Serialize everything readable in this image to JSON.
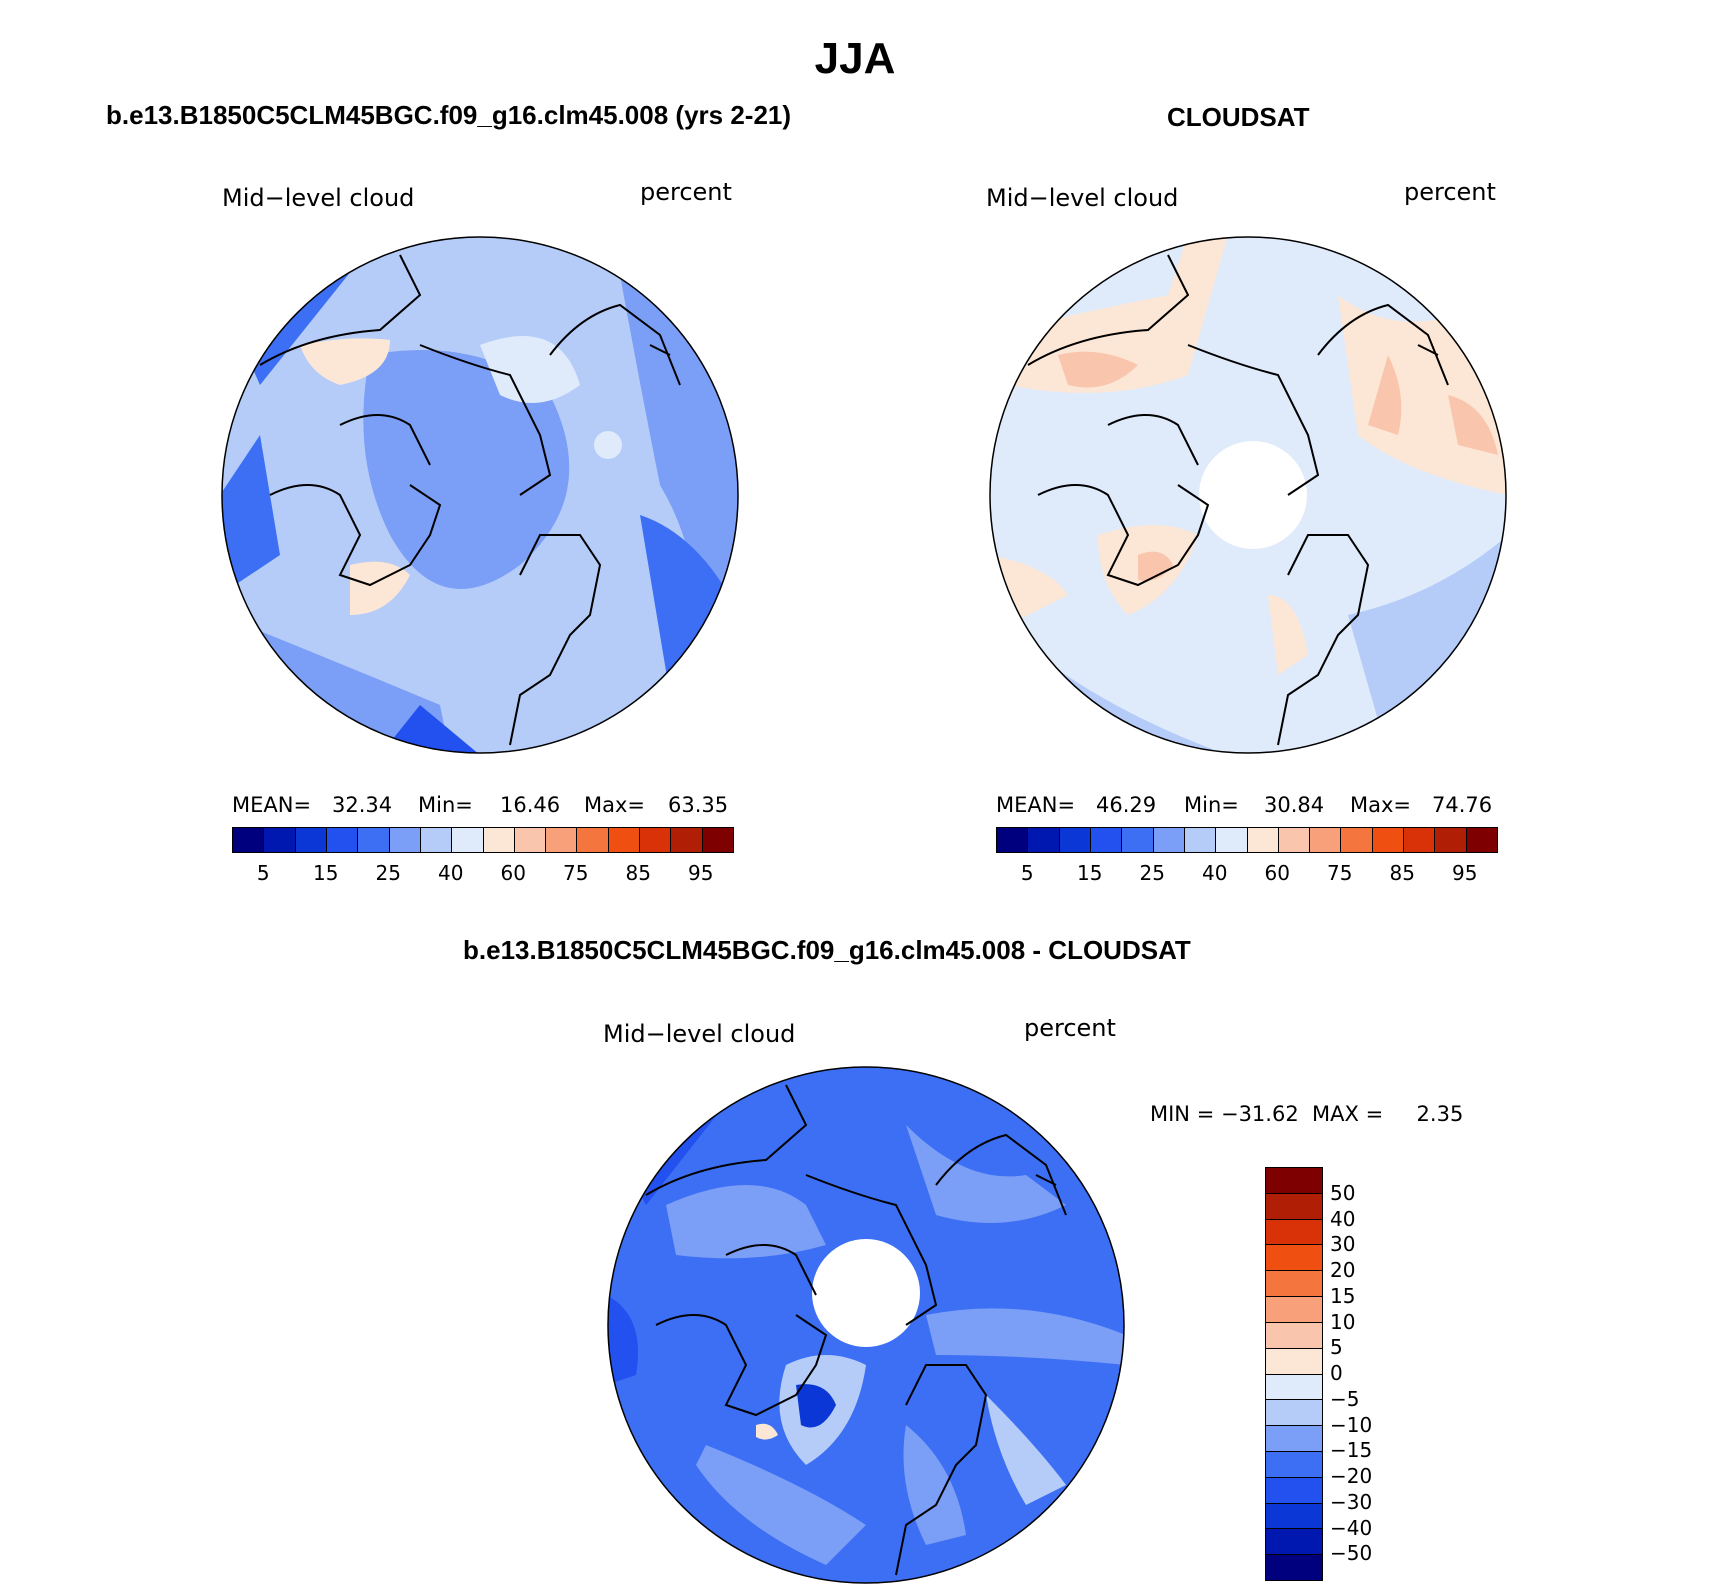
{
  "figure": {
    "title": "JJA"
  },
  "panels": [
    {
      "title": "b.e13.B1850C5CLM45BGC.f09_g16.clm45.008 (yrs 2-21)",
      "left_label": "Mid−level cloud",
      "right_label": "percent",
      "stats": {
        "mean_label": "MEAN=",
        "mean": "32.34",
        "min_label": "Min=",
        "min": "16.46",
        "max_label": "Max=",
        "max": "63.35"
      }
    },
    {
      "title": "CLOUDSAT",
      "left_label": "Mid−level cloud",
      "right_label": "percent",
      "stats": {
        "mean_label": "MEAN=",
        "mean": "46.29",
        "min_label": "Min=",
        "min": "30.84",
        "max_label": "Max=",
        "max": "74.76"
      }
    },
    {
      "title": "b.e13.B1850C5CLM45BGC.f09_g16.clm45.008 - CLOUDSAT",
      "left_label": "Mid−level cloud",
      "right_label": "percent",
      "stats_text": "MIN = −31.62  MAX =     2.35"
    }
  ],
  "colorbar_abs": {
    "colors": [
      "#00007f",
      "#0018b0",
      "#0a37d6",
      "#2251ef",
      "#3c6ff3",
      "#7b9ef6",
      "#b5ccf9",
      "#dfeafb",
      "#fce7d6",
      "#f9c6ad",
      "#f7a07a",
      "#f4763e",
      "#f04f12",
      "#d93108",
      "#b01e05",
      "#7f0000"
    ],
    "tick_labels": [
      "5",
      "15",
      "25",
      "40",
      "60",
      "75",
      "85",
      "95"
    ]
  },
  "colorbar_diff": {
    "colors": [
      "#7f0000",
      "#b01e05",
      "#d93108",
      "#f04f12",
      "#f4763e",
      "#f7a07a",
      "#f9c6ad",
      "#fce7d6",
      "#dfeafb",
      "#b5ccf9",
      "#7b9ef6",
      "#3c6ff3",
      "#2251ef",
      "#0a37d6",
      "#0018b0",
      "#00007f"
    ],
    "tick_labels": [
      "50",
      "40",
      "30",
      "20",
      "15",
      "10",
      "5",
      "0",
      "−5",
      "−10",
      "−15",
      "−20",
      "−30",
      "−40",
      "−50"
    ]
  }
}
